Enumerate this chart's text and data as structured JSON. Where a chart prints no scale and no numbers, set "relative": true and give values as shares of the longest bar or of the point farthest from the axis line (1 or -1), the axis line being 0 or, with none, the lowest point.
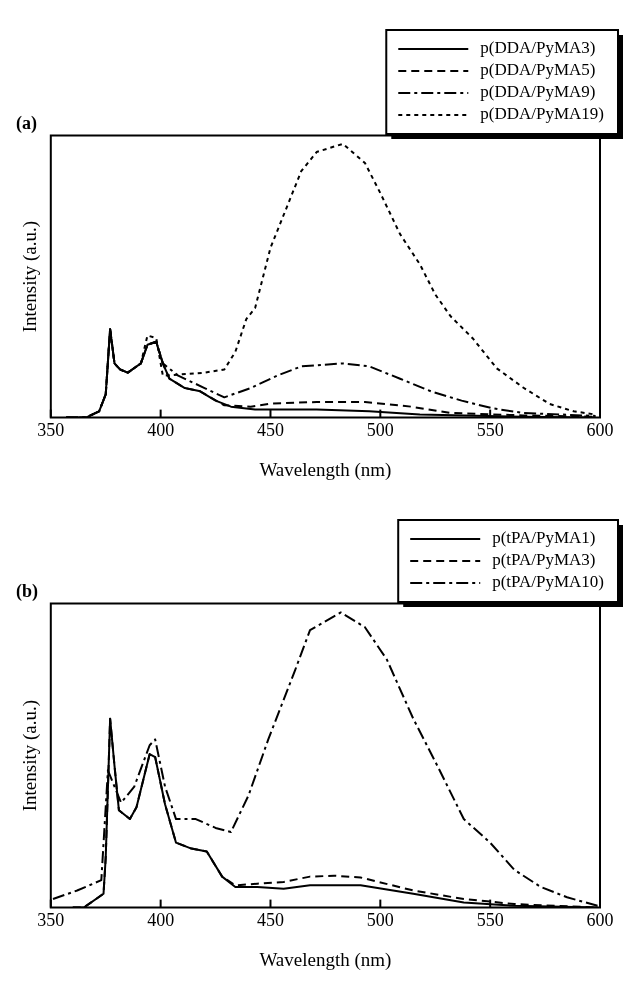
{
  "chart_data": [
    {
      "type": "line",
      "title": "(a)",
      "xlabel": "Wavelength (nm)",
      "ylabel": "Intensity (a.u.)",
      "relative": true,
      "xlim": [
        350,
        600
      ],
      "xticks": [
        350,
        400,
        450,
        500,
        550,
        600
      ],
      "grid": false,
      "legend": "top right",
      "series": [
        {
          "name": "p(DDA/PyMA3)",
          "color": "#000000",
          "line_style": "solid",
          "x": [
            357,
            366,
            372,
            375,
            377,
            379,
            381.5,
            385,
            391,
            394,
            398,
            401,
            404,
            411,
            418,
            425,
            432,
            443,
            471,
            495,
            518,
            565,
            598
          ],
          "values": [
            0,
            0,
            0.023,
            0.085,
            0.323,
            0.198,
            0.176,
            0.164,
            0.198,
            0.266,
            0.277,
            0.198,
            0.142,
            0.108,
            0.096,
            0.062,
            0.04,
            0.03,
            0.03,
            0.023,
            0.011,
            0.003,
            0
          ]
        },
        {
          "name": "p(DDA/PyMA5)",
          "color": "#000000",
          "line_style": "dashed",
          "x": [
            357,
            366,
            372,
            375,
            377,
            379,
            381.5,
            385,
            391,
            394,
            398,
            401,
            404,
            411,
            418,
            429,
            441,
            450,
            471,
            493,
            514,
            532,
            565,
            598
          ],
          "values": [
            0,
            0,
            0.023,
            0.085,
            0.323,
            0.198,
            0.176,
            0.164,
            0.198,
            0.266,
            0.277,
            0.198,
            0.142,
            0.108,
            0.096,
            0.045,
            0.04,
            0.051,
            0.057,
            0.057,
            0.04,
            0.017,
            0.008,
            0.003
          ]
        },
        {
          "name": "p(DDA/PyMA9)",
          "color": "#000000",
          "line_style": "dashdot",
          "x": [
            357,
            366,
            372,
            375,
            377,
            379,
            381.5,
            385,
            391,
            394,
            398,
            401,
            408,
            420,
            429,
            441,
            453,
            464,
            483,
            495,
            509,
            523,
            537,
            551,
            565,
            598
          ],
          "values": [
            0,
            0,
            0.023,
            0.085,
            0.323,
            0.198,
            0.176,
            0.164,
            0.198,
            0.266,
            0.277,
            0.198,
            0.153,
            0.108,
            0.074,
            0.108,
            0.153,
            0.187,
            0.198,
            0.187,
            0.142,
            0.096,
            0.062,
            0.034,
            0.017,
            0.006
          ]
        },
        {
          "name": "p(DDA/PyMA19)",
          "color": "#000000",
          "line_style": "dotted",
          "x": [
            357,
            366,
            372,
            375,
            377,
            379,
            381.5,
            385,
            391,
            394,
            398,
            401,
            420,
            429,
            434,
            439,
            443,
            450,
            457,
            464,
            471,
            483,
            493,
            500,
            509,
            518,
            525,
            532,
            542,
            553,
            565,
            577,
            588,
            598
          ],
          "values": [
            0,
            0,
            0.023,
            0.085,
            0.323,
            0.198,
            0.176,
            0.164,
            0.198,
            0.3,
            0.29,
            0.153,
            0.164,
            0.176,
            0.24,
            0.36,
            0.4,
            0.62,
            0.76,
            0.9,
            0.97,
            1,
            0.93,
            0.82,
            0.67,
            0.56,
            0.45,
            0.37,
            0.29,
            0.18,
            0.11,
            0.05,
            0.023,
            0.011
          ]
        }
      ]
    },
    {
      "type": "line",
      "title": "(b)",
      "xlabel": "Wavelength (nm)",
      "ylabel": "Intensity (a.u.)",
      "relative": true,
      "xlim": [
        350,
        600
      ],
      "xticks": [
        350,
        400,
        450,
        500,
        550,
        600
      ],
      "grid": false,
      "legend": "top right",
      "series": [
        {
          "name": "p(tPA/PyMA1)",
          "color": "#000000",
          "line_style": "solid",
          "x": [
            360,
            365,
            374,
            375,
            377,
            379,
            381,
            386,
            389,
            395,
            397.5,
            402,
            407,
            414,
            421,
            428,
            434,
            444,
            456,
            468,
            491,
            515,
            538,
            561,
            599
          ],
          "values": [
            0,
            0,
            0.047,
            0.17,
            0.64,
            0.48,
            0.33,
            0.3,
            0.34,
            0.52,
            0.51,
            0.35,
            0.22,
            0.2,
            0.19,
            0.105,
            0.07,
            0.07,
            0.064,
            0.076,
            0.076,
            0.047,
            0.017,
            0.006,
            0
          ]
        },
        {
          "name": "p(tPA/PyMA3)",
          "color": "#000000",
          "line_style": "dashed",
          "x": [
            360,
            365,
            374,
            375,
            377,
            379,
            381,
            386,
            389,
            395,
            397.5,
            402,
            407,
            414,
            421,
            428,
            434,
            444,
            456,
            468,
            479,
            491,
            515,
            538,
            561,
            599
          ],
          "values": [
            0,
            0,
            0.047,
            0.17,
            0.64,
            0.48,
            0.33,
            0.3,
            0.34,
            0.52,
            0.51,
            0.35,
            0.22,
            0.2,
            0.19,
            0.105,
            0.075,
            0.081,
            0.087,
            0.105,
            0.108,
            0.102,
            0.058,
            0.029,
            0.012,
            0
          ]
        },
        {
          "name": "p(tPA/PyMA10)",
          "color": "#000000",
          "line_style": "dashdot",
          "x": [
            351,
            362,
            373,
            376,
            382,
            388,
            395,
            397.5,
            402,
            407,
            416,
            425,
            432,
            440,
            449,
            461,
            468,
            482,
            493,
            503,
            515,
            526,
            538,
            550,
            561,
            573,
            585,
            599
          ],
          "values": [
            0.029,
            0.058,
            0.093,
            0.465,
            0.355,
            0.41,
            0.55,
            0.57,
            0.41,
            0.3,
            0.3,
            0.27,
            0.256,
            0.38,
            0.57,
            0.8,
            0.94,
            1,
            0.95,
            0.84,
            0.64,
            0.48,
            0.3,
            0.22,
            0.128,
            0.07,
            0.035,
            0.006
          ]
        }
      ]
    }
  ]
}
